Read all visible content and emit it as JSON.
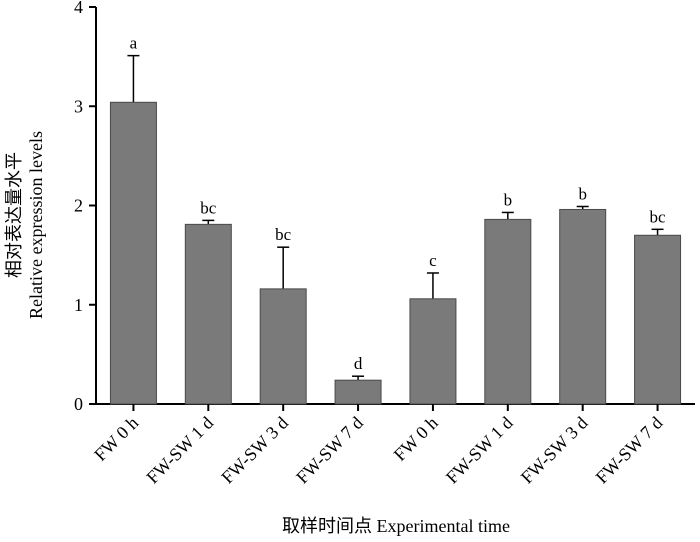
{
  "chart_data": {
    "type": "bar",
    "categories": [
      "FW 0 h",
      "FW-SW 1 d",
      "FW-SW 3 d",
      "FW-SW 7 d",
      "FW 0 h",
      "FW-SW 1 d",
      "FW-SW 3 d",
      "FW-SW 7 d"
    ],
    "values": [
      3.04,
      1.81,
      1.16,
      0.24,
      1.06,
      1.86,
      1.96,
      1.7
    ],
    "errors": [
      0.47,
      0.04,
      0.42,
      0.04,
      0.26,
      0.07,
      0.03,
      0.06
    ],
    "significance": [
      "a",
      "bc",
      "bc",
      "d",
      "c",
      "b",
      "b",
      "bc"
    ],
    "title": "",
    "xlabel": "取样时间点 Experimental time",
    "ylabel_cn": "相对表达量水平",
    "ylabel_en": "Relative expression levels",
    "ylim": [
      0,
      4
    ],
    "yticks": [
      "0",
      "1",
      "2",
      "3",
      "4"
    ],
    "grid": false,
    "bar_color": "#7a7a7a"
  }
}
